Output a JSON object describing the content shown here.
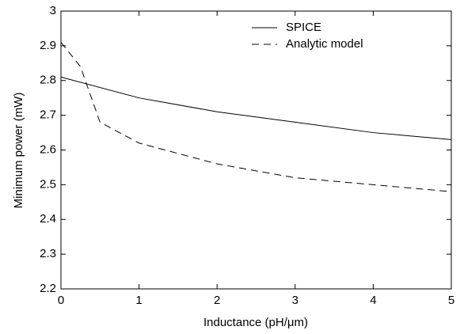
{
  "chart_data": {
    "type": "line",
    "xlabel": "Inductance (pH/μm)",
    "ylabel": "Minimum power (mW)",
    "xlim": [
      0,
      5
    ],
    "xticks": [
      0,
      1,
      2,
      3,
      4,
      5
    ],
    "ylim": [
      2.2,
      3
    ],
    "yticks": [
      2.2,
      2.3,
      2.4,
      2.5,
      2.6,
      2.7,
      2.8,
      2.9,
      3
    ],
    "grid": false,
    "legend": "upper right",
    "series": [
      {
        "name": "SPICE",
        "color": "#000000",
        "dash": "solid",
        "x": [
          0,
          1,
          2,
          3,
          4,
          5
        ],
        "values": [
          2.81,
          2.75,
          2.71,
          2.68,
          2.65,
          2.63
        ]
      },
      {
        "name": "Analytic model",
        "color": "#000000",
        "dash": "dashed",
        "x": [
          0,
          0.25,
          0.5,
          1,
          2,
          3,
          4,
          5
        ],
        "values": [
          2.91,
          2.84,
          2.68,
          2.62,
          2.56,
          2.52,
          2.5,
          2.48
        ]
      }
    ]
  }
}
